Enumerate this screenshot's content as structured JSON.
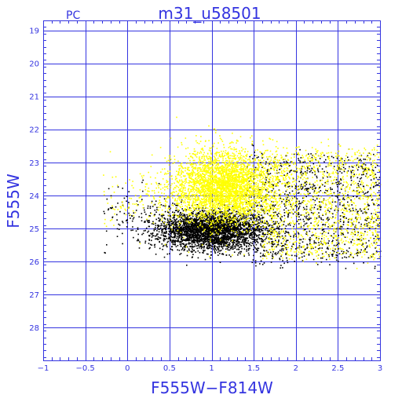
{
  "chart_data": {
    "type": "scatter",
    "corner_label": "PC",
    "title": "m31_u58501",
    "xlabel": "F555W−F814W",
    "ylabel": "F555W",
    "xlim": [
      -1,
      3
    ],
    "ylim": [
      29,
      18.7
    ],
    "y_inverted": true,
    "grid": true,
    "x_major_ticks": [
      -1,
      -0.5,
      0,
      0.5,
      1,
      1.5,
      2,
      2.5,
      3
    ],
    "x_major_tick_labels": [
      "−1",
      "−0.5",
      "0",
      "0.5",
      "1",
      "1.5",
      "2",
      "2.5",
      "3"
    ],
    "y_major_ticks": [
      19,
      20,
      21,
      22,
      23,
      24,
      25,
      26,
      27,
      28
    ],
    "y_major_tick_labels": [
      "19",
      "20",
      "21",
      "22",
      "23",
      "24",
      "25",
      "26",
      "27",
      "28"
    ],
    "colors": {
      "axes": "#3434e0",
      "series_black": "#000000",
      "series_yellow": "#ffff00"
    },
    "series": [
      {
        "color": "#ffff00",
        "point_count": 5000,
        "distribution": {
          "core": {
            "x_mean": 1.15,
            "x_sd": 0.3,
            "y_mean": 23.75,
            "y_sd": 0.55
          },
          "red_tail": {
            "x_range": [
              1.6,
              3.0
            ],
            "y_range": [
              22.6,
              25.8
            ]
          }
        }
      },
      {
        "color": "#000000",
        "point_count": 4300,
        "distribution": {
          "core": {
            "x_mean": 1.0,
            "x_sd": 0.32,
            "y_mean": 25.05,
            "y_sd": 0.3
          },
          "red_tail": {
            "x_range": [
              1.4,
              3.0
            ],
            "y_range": [
              22.8,
              26.0
            ]
          }
        }
      }
    ]
  }
}
